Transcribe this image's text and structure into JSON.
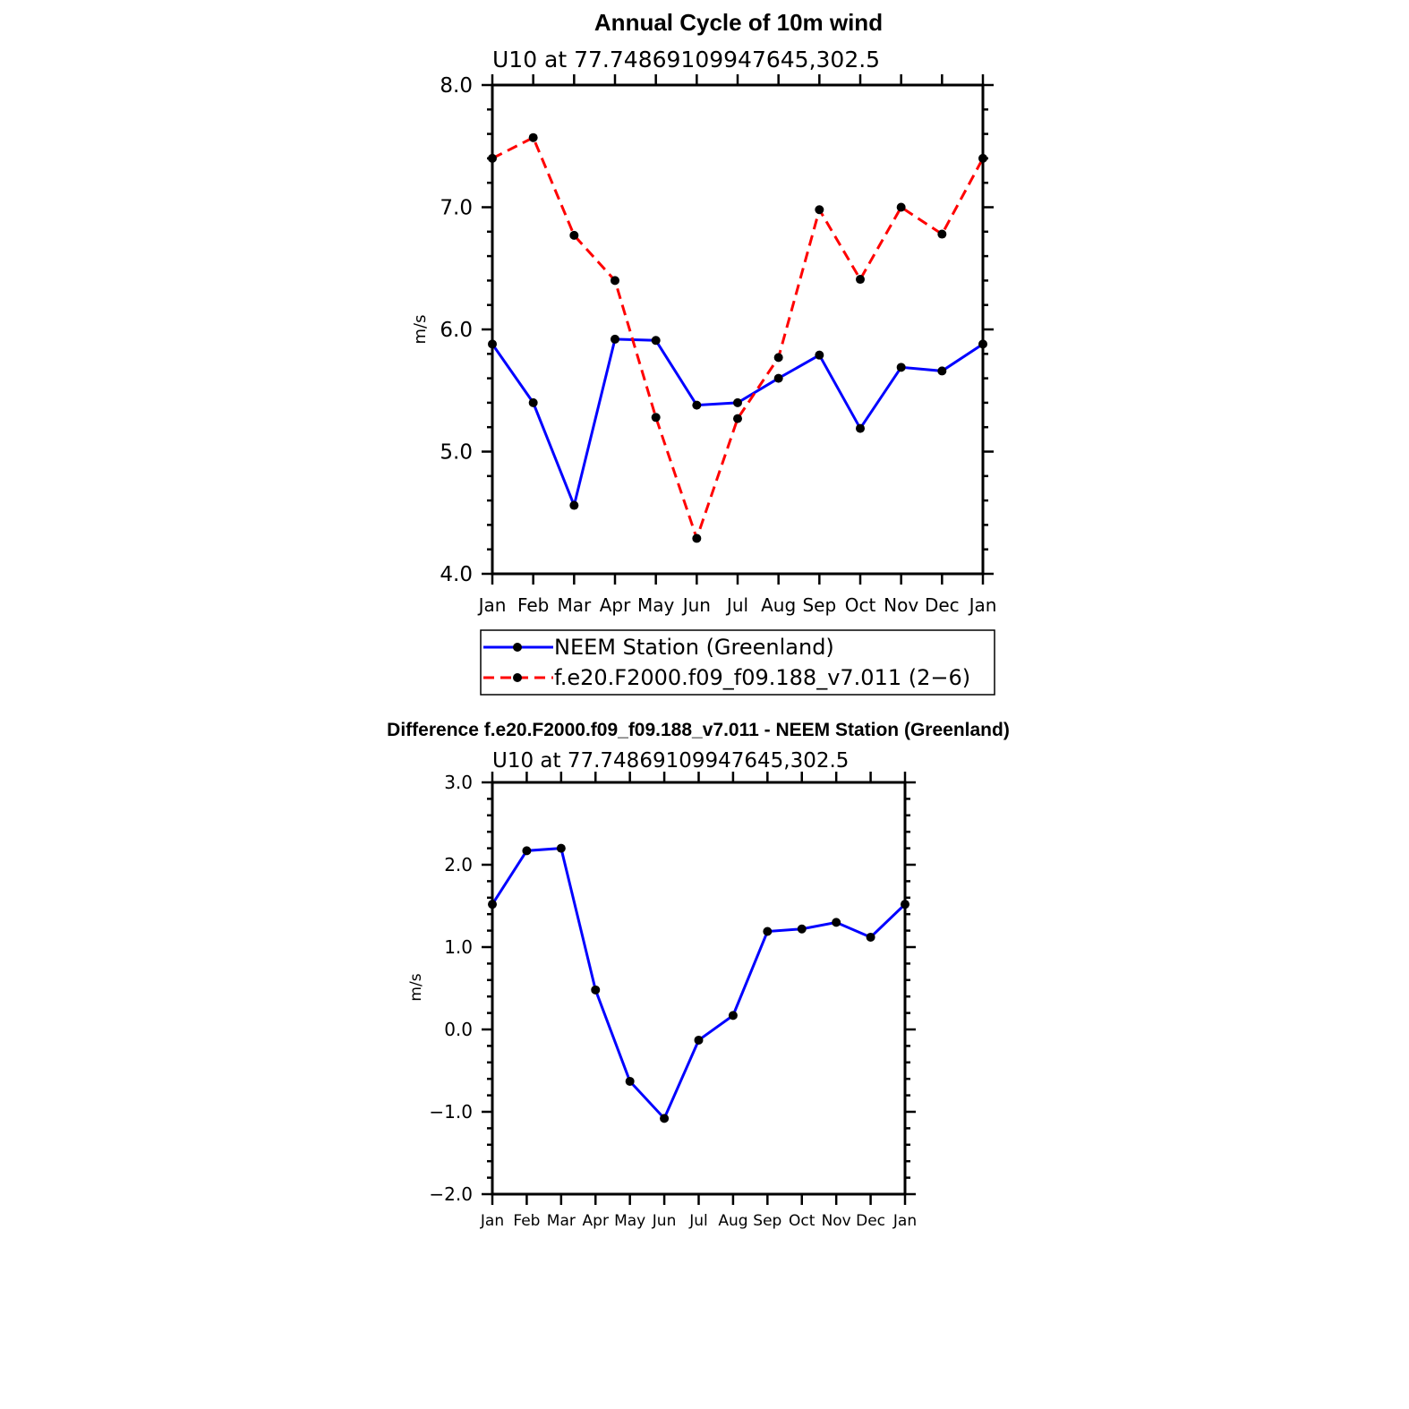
{
  "chart_data": [
    {
      "type": "line",
      "title": "Annual Cycle of 10m wind",
      "subtitle": "U10 at 77.74869109947645,302.5",
      "xlabel": "",
      "ylabel": "m/s",
      "categories": [
        "Jan",
        "Feb",
        "Mar",
        "Apr",
        "May",
        "Jun",
        "Jul",
        "Aug",
        "Sep",
        "Oct",
        "Nov",
        "Dec",
        "Jan"
      ],
      "ylim": [
        4.0,
        8.0
      ],
      "yticks": [
        "4.0",
        "5.0",
        "6.0",
        "7.0",
        "8.0"
      ],
      "grid": false,
      "legend_position": "bottom",
      "series": [
        {
          "name": "NEEM Station (Greenland)",
          "color": "#0000ff",
          "dash": "solid",
          "values": [
            5.88,
            5.4,
            4.56,
            5.92,
            5.91,
            5.38,
            5.4,
            5.6,
            5.79,
            5.19,
            5.69,
            5.66,
            5.88
          ]
        },
        {
          "name": "f.e20.F2000.f09_f09.188_v7.011 (2−6)",
          "color": "#ff0000",
          "dash": "dashed",
          "values": [
            7.4,
            7.57,
            6.77,
            6.4,
            5.28,
            4.29,
            5.27,
            5.77,
            6.98,
            6.41,
            7.0,
            6.78,
            7.4
          ]
        }
      ]
    },
    {
      "type": "line",
      "title": "Difference f.e20.F2000.f09_f09.188_v7.011 - NEEM Station (Greenland)",
      "subtitle": "U10 at 77.74869109947645,302.5",
      "xlabel": "",
      "ylabel": "m/s",
      "categories": [
        "Jan",
        "Feb",
        "Mar",
        "Apr",
        "May",
        "Jun",
        "Jul",
        "Aug",
        "Sep",
        "Oct",
        "Nov",
        "Dec",
        "Jan"
      ],
      "ylim": [
        -2.0,
        3.0
      ],
      "yticks": [
        "−2.0",
        "−1.0",
        "0.0",
        "1.0",
        "2.0",
        "3.0"
      ],
      "grid": false,
      "series": [
        {
          "name": "Difference",
          "color": "#0000ff",
          "dash": "solid",
          "values": [
            1.52,
            2.17,
            2.2,
            0.48,
            -0.63,
            -1.08,
            -0.13,
            0.17,
            1.19,
            1.22,
            1.3,
            1.12,
            1.52
          ]
        }
      ]
    }
  ]
}
